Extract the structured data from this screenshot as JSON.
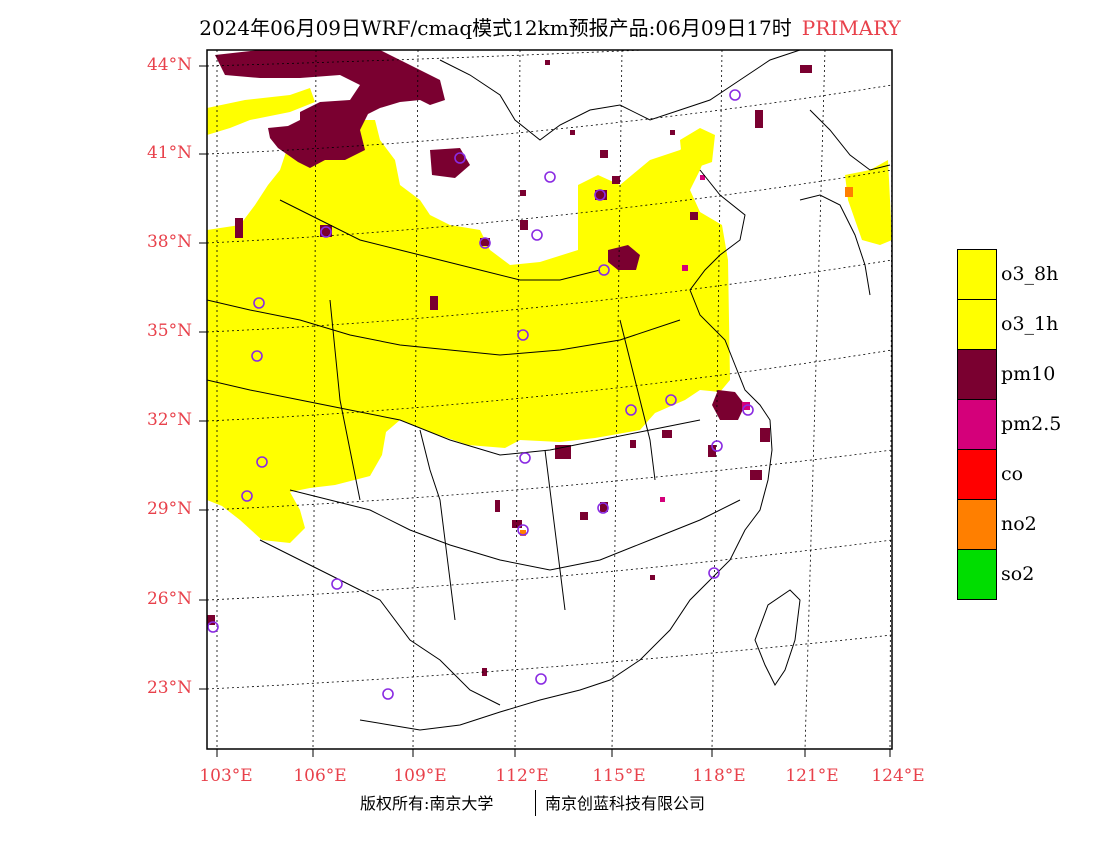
{
  "title": "2024年06月09日WRF/cmaq模式12km预报产品:06月09日17时",
  "title_tag": "PRIMARY",
  "lat_labels": [
    "44°N",
    "41°N",
    "38°N",
    "35°N",
    "32°N",
    "29°N",
    "26°N",
    "23°N"
  ],
  "lon_labels": [
    "103°E",
    "106°E",
    "109°E",
    "112°E",
    "115°E",
    "118°E",
    "121°E",
    "124°E"
  ],
  "legend": [
    {
      "label": "o3_8h",
      "color": "#ffff00"
    },
    {
      "label": "o3_1h",
      "color": "#ffff00"
    },
    {
      "label": "pm10",
      "color": "#7a0030"
    },
    {
      "label": "pm2.5",
      "color": "#d4007a"
    },
    {
      "label": "co",
      "color": "#ff0000"
    },
    {
      "label": "no2",
      "color": "#ff7f00"
    },
    {
      "label": "so2",
      "color": "#00dd00"
    }
  ],
  "footer_left": "版权所有:南京大学",
  "footer_right": "南京创蓝科技有限公司"
}
